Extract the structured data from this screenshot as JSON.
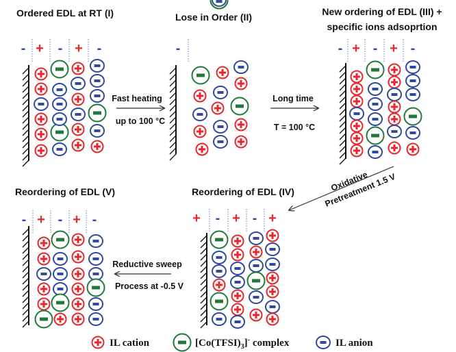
{
  "panels": [
    {
      "title": "Ordered EDL at RT (I)",
      "signs": [
        "-",
        "+",
        "-",
        "+",
        "-"
      ]
    },
    {
      "title": "Lose in Order (II)",
      "signs": [
        "-"
      ]
    },
    {
      "title": "New ordering of EDL (III) +",
      "subtitle": "specific ions adsoprtion",
      "signs": [
        "-",
        "+",
        "-",
        "+",
        "-"
      ]
    },
    {
      "title": "Reordering of EDL (IV)",
      "signs": [
        "+",
        "-",
        "+",
        "-",
        "+"
      ]
    },
    {
      "title": "Reordering of EDL (V)",
      "signs": [
        "-",
        "+",
        "-",
        "+",
        "-"
      ]
    }
  ],
  "arrows": [
    {
      "label": "Fast heating",
      "sublabel": "up to 100 °C"
    },
    {
      "label": "Long time",
      "sublabel": "T = 100 °C"
    },
    {
      "label": "Oxidative",
      "sublabel": "Pretreatment 1.5 V"
    },
    {
      "label": "Reductive sweep",
      "sublabel": "Process at -0.5 V"
    }
  ],
  "legend": {
    "cation": "IL cation",
    "complex": {
      "text": "[Co(TFSI)",
      "sub": "3",
      "close": "]",
      "sup": "-",
      "rest": "complex"
    },
    "anion": "IL anion"
  }
}
